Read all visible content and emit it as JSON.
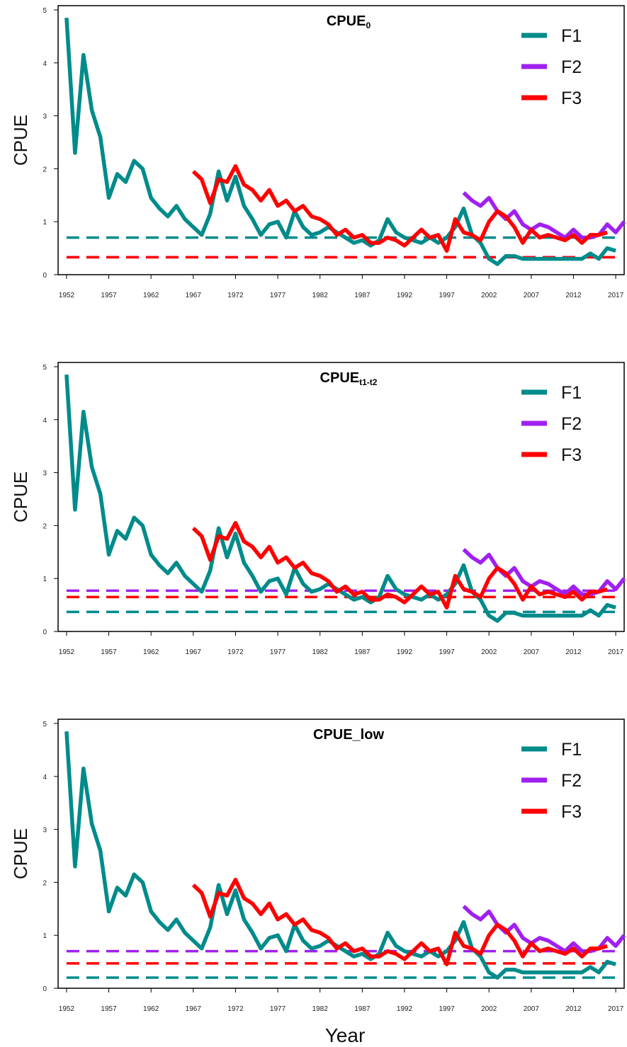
{
  "figure": {
    "xlabel": "Year",
    "colors": {
      "F1": "#008B8B",
      "F2": "#A020F0",
      "F3": "#FF0000"
    }
  },
  "chart_data": [
    {
      "type": "line",
      "title": "CPUE",
      "title_sub": "0",
      "xlabel": "",
      "ylabel": "CPUE",
      "xlim": [
        1951,
        2018
      ],
      "ylim": [
        0,
        5
      ],
      "x_ticks": [
        1952,
        1957,
        1962,
        1967,
        1972,
        1977,
        1982,
        1987,
        1992,
        1997,
        2002,
        2007,
        2012,
        2017
      ],
      "y_ticks": [
        0,
        1,
        2,
        3,
        4,
        5
      ],
      "grid": false,
      "legend_position": "top-right",
      "legend": [
        "F1",
        "F2",
        "F3"
      ],
      "series": [
        {
          "name": "F1",
          "x_start": 1952,
          "values": [
            4.85,
            2.3,
            4.15,
            3.1,
            2.6,
            1.45,
            1.9,
            1.75,
            2.15,
            2.0,
            1.45,
            1.25,
            1.1,
            1.3,
            1.05,
            0.9,
            0.75,
            1.15,
            1.95,
            1.4,
            1.85,
            1.3,
            1.05,
            0.75,
            0.95,
            1.0,
            0.7,
            1.2,
            0.9,
            0.75,
            0.8,
            0.9,
            0.8,
            0.7,
            0.6,
            0.65,
            0.55,
            0.65,
            1.05,
            0.8,
            0.7,
            0.65,
            0.6,
            0.7,
            0.6,
            0.7,
            0.9,
            1.25,
            0.75,
            0.6,
            0.3,
            0.2,
            0.35,
            0.35,
            0.3,
            0.3,
            0.3,
            0.3,
            0.3,
            0.3,
            0.3,
            0.3,
            0.4,
            0.3,
            0.5,
            0.45
          ]
        },
        {
          "name": "F2",
          "x_start": 1999,
          "values": [
            1.55,
            1.4,
            1.3,
            1.45,
            1.2,
            1.05,
            1.2,
            0.95,
            0.85,
            0.95,
            0.9,
            0.8,
            0.7,
            0.85,
            0.7,
            0.7,
            0.75,
            0.95,
            0.8,
            1.0
          ]
        },
        {
          "name": "F3",
          "x_start": 1967,
          "values": [
            1.95,
            1.8,
            1.35,
            1.8,
            1.75,
            2.05,
            1.7,
            1.6,
            1.4,
            1.6,
            1.3,
            1.4,
            1.2,
            1.3,
            1.1,
            1.05,
            0.95,
            0.75,
            0.85,
            0.7,
            0.75,
            0.6,
            0.6,
            0.7,
            0.65,
            0.55,
            0.7,
            0.85,
            0.7,
            0.75,
            0.45,
            1.05,
            0.8,
            0.75,
            0.65,
            1.0,
            1.2,
            1.1,
            0.9,
            0.6,
            0.85,
            0.7,
            0.75,
            0.7,
            0.65,
            0.75,
            0.6,
            0.75,
            0.75,
            0.8
          ]
        }
      ],
      "reference_lines": [
        {
          "name": "F1",
          "y": 0.7
        },
        {
          "name": "F2",
          "y": 0.33
        },
        {
          "name": "F3",
          "y": 0.33
        }
      ]
    },
    {
      "type": "line",
      "title": "CPUE",
      "title_sub": "t1-t2",
      "xlabel": "",
      "ylabel": "CPUE",
      "xlim": [
        1951,
        2018
      ],
      "ylim": [
        0,
        5
      ],
      "x_ticks": [
        1952,
        1957,
        1962,
        1967,
        1972,
        1977,
        1982,
        1987,
        1992,
        1997,
        2002,
        2007,
        2012,
        2017
      ],
      "y_ticks": [
        0,
        1,
        2,
        3,
        4,
        5
      ],
      "grid": false,
      "legend_position": "top-right",
      "legend": [
        "F1",
        "F2",
        "F3"
      ],
      "series": [
        {
          "name": "F1",
          "x_start": 1952,
          "values": [
            4.85,
            2.3,
            4.15,
            3.1,
            2.6,
            1.45,
            1.9,
            1.75,
            2.15,
            2.0,
            1.45,
            1.25,
            1.1,
            1.3,
            1.05,
            0.9,
            0.75,
            1.15,
            1.95,
            1.4,
            1.85,
            1.3,
            1.05,
            0.75,
            0.95,
            1.0,
            0.7,
            1.2,
            0.9,
            0.75,
            0.8,
            0.9,
            0.8,
            0.7,
            0.6,
            0.65,
            0.55,
            0.65,
            1.05,
            0.8,
            0.7,
            0.65,
            0.6,
            0.7,
            0.6,
            0.7,
            0.9,
            1.25,
            0.75,
            0.6,
            0.3,
            0.2,
            0.35,
            0.35,
            0.3,
            0.3,
            0.3,
            0.3,
            0.3,
            0.3,
            0.3,
            0.3,
            0.4,
            0.3,
            0.5,
            0.45
          ]
        },
        {
          "name": "F2",
          "x_start": 1999,
          "values": [
            1.55,
            1.4,
            1.3,
            1.45,
            1.2,
            1.05,
            1.2,
            0.95,
            0.85,
            0.95,
            0.9,
            0.8,
            0.7,
            0.85,
            0.7,
            0.7,
            0.75,
            0.95,
            0.8,
            1.0
          ]
        },
        {
          "name": "F3",
          "x_start": 1967,
          "values": [
            1.95,
            1.8,
            1.35,
            1.8,
            1.75,
            2.05,
            1.7,
            1.6,
            1.4,
            1.6,
            1.3,
            1.4,
            1.2,
            1.3,
            1.1,
            1.05,
            0.95,
            0.75,
            0.85,
            0.7,
            0.75,
            0.6,
            0.6,
            0.7,
            0.65,
            0.55,
            0.7,
            0.85,
            0.7,
            0.75,
            0.45,
            1.05,
            0.8,
            0.75,
            0.65,
            1.0,
            1.2,
            1.1,
            0.9,
            0.6,
            0.85,
            0.7,
            0.75,
            0.7,
            0.65,
            0.75,
            0.6,
            0.75,
            0.75,
            0.8
          ]
        }
      ],
      "reference_lines": [
        {
          "name": "F1",
          "y": 0.37
        },
        {
          "name": "F2",
          "y": 0.77
        },
        {
          "name": "F3",
          "y": 0.65
        }
      ]
    },
    {
      "type": "line",
      "title": "CPUE_low",
      "title_sub": "",
      "xlabel": "Year",
      "ylabel": "CPUE",
      "xlim": [
        1951,
        2018
      ],
      "ylim": [
        0,
        5
      ],
      "x_ticks": [
        1952,
        1957,
        1962,
        1967,
        1972,
        1977,
        1982,
        1987,
        1992,
        1997,
        2002,
        2007,
        2012,
        2017
      ],
      "y_ticks": [
        0,
        1,
        2,
        3,
        4,
        5
      ],
      "grid": false,
      "legend_position": "top-right",
      "legend": [
        "F1",
        "F2",
        "F3"
      ],
      "series": [
        {
          "name": "F1",
          "x_start": 1952,
          "values": [
            4.85,
            2.3,
            4.15,
            3.1,
            2.6,
            1.45,
            1.9,
            1.75,
            2.15,
            2.0,
            1.45,
            1.25,
            1.1,
            1.3,
            1.05,
            0.9,
            0.75,
            1.15,
            1.95,
            1.4,
            1.85,
            1.3,
            1.05,
            0.75,
            0.95,
            1.0,
            0.7,
            1.2,
            0.9,
            0.75,
            0.8,
            0.9,
            0.8,
            0.7,
            0.6,
            0.65,
            0.55,
            0.65,
            1.05,
            0.8,
            0.7,
            0.65,
            0.6,
            0.7,
            0.6,
            0.7,
            0.9,
            1.25,
            0.75,
            0.6,
            0.3,
            0.2,
            0.35,
            0.35,
            0.3,
            0.3,
            0.3,
            0.3,
            0.3,
            0.3,
            0.3,
            0.3,
            0.4,
            0.3,
            0.5,
            0.45
          ]
        },
        {
          "name": "F2",
          "x_start": 1999,
          "values": [
            1.55,
            1.4,
            1.3,
            1.45,
            1.2,
            1.05,
            1.2,
            0.95,
            0.85,
            0.95,
            0.9,
            0.8,
            0.7,
            0.85,
            0.7,
            0.7,
            0.75,
            0.95,
            0.8,
            1.0
          ]
        },
        {
          "name": "F3",
          "x_start": 1967,
          "values": [
            1.95,
            1.8,
            1.35,
            1.8,
            1.75,
            2.05,
            1.7,
            1.6,
            1.4,
            1.6,
            1.3,
            1.4,
            1.2,
            1.3,
            1.1,
            1.05,
            0.95,
            0.75,
            0.85,
            0.7,
            0.75,
            0.6,
            0.6,
            0.7,
            0.65,
            0.55,
            0.7,
            0.85,
            0.7,
            0.75,
            0.45,
            1.05,
            0.8,
            0.75,
            0.65,
            1.0,
            1.2,
            1.1,
            0.9,
            0.6,
            0.85,
            0.7,
            0.75,
            0.7,
            0.65,
            0.75,
            0.6,
            0.75,
            0.75,
            0.8
          ]
        }
      ],
      "reference_lines": [
        {
          "name": "F1",
          "y": 0.2
        },
        {
          "name": "F2",
          "y": 0.7
        },
        {
          "name": "F3",
          "y": 0.47
        }
      ]
    }
  ]
}
